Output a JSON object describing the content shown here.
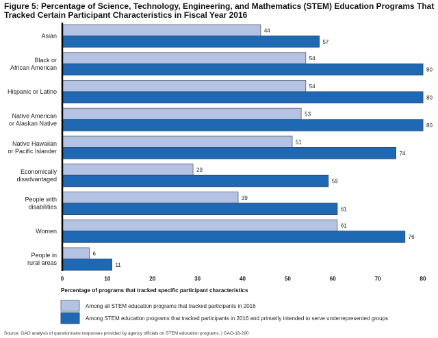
{
  "figure": {
    "title": "Figure 5: Percentage of Science, Technology, Engineering, and Mathematics (STEM) Education Programs That Tracked Certain Participant Characteristics in Fiscal Year 2016",
    "source": "Source: GAO analysis of questionnaire responses provided by agency officials on STEM education programs.  |  GAO-18-290"
  },
  "chart_data": {
    "type": "bar",
    "orientation": "horizontal",
    "title": "Figure 5: Percentage of Science, Technology, Engineering, and Mathematics (STEM) Education Programs That Tracked Certain Participant Characteristics in Fiscal Year 2016",
    "categories": [
      [
        "Asian"
      ],
      [
        "Black or",
        "African American"
      ],
      [
        "Hispanic or Latino"
      ],
      [
        "Native American",
        "or Alaskan Native"
      ],
      [
        "Native Hawaiian",
        "or Pacific Islander"
      ],
      [
        "Economically",
        "disadvantaged"
      ],
      [
        "People with",
        "disabilities"
      ],
      [
        "Women"
      ],
      [
        "People in",
        "rural areas"
      ]
    ],
    "series": [
      {
        "name": "Among all STEM education programs that tracked participants in 2016",
        "color": "#b4c3e4",
        "values": [
          44,
          54,
          54,
          53,
          51,
          29,
          39,
          61,
          6
        ]
      },
      {
        "name": "Among STEM education programs that tracked participants in 2016 and primarily intended to serve underrepresented groups",
        "color": "#1f68b3",
        "values": [
          57,
          80,
          80,
          80,
          74,
          59,
          61,
          76,
          11
        ]
      }
    ],
    "xlabel": "Percentage of programs that tracked specific participant characteristics",
    "ylabel": "",
    "xlim": [
      0,
      80
    ],
    "xticks": [
      0,
      10,
      20,
      30,
      40,
      50,
      60,
      70,
      80
    ],
    "grid": false,
    "legend_position": "bottom"
  }
}
